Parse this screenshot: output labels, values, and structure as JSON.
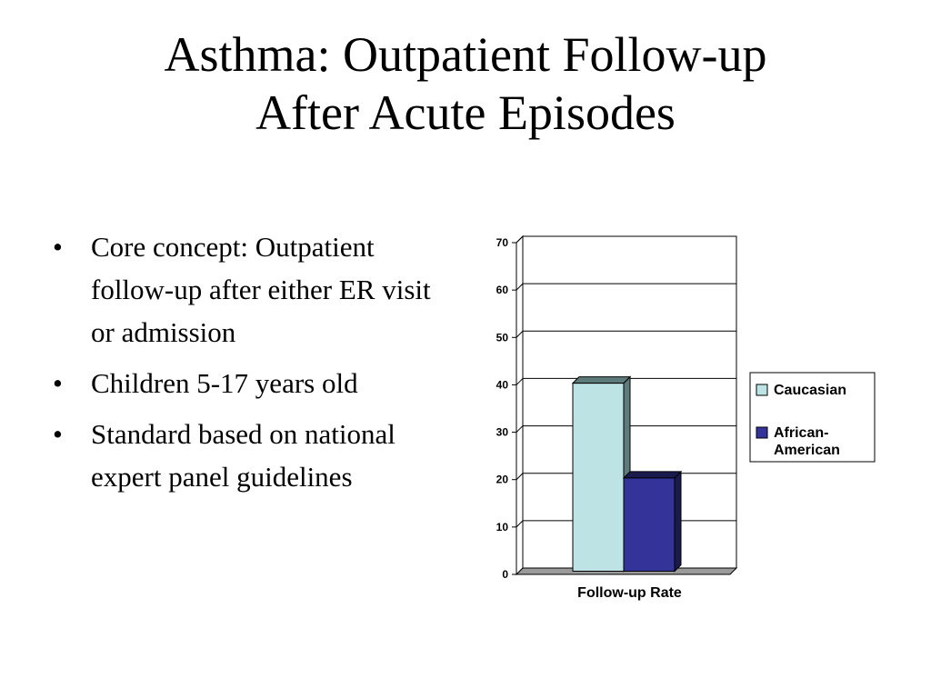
{
  "slide": {
    "title_line1": "Asthma: Outpatient Follow-up",
    "title_line2": "After Acute Episodes",
    "bullet_symbol": "•",
    "bullets": [
      "Core concept: Outpatient follow-up after either ER visit or admission",
      "Children 5-17 years old",
      "Standard based on national expert panel guidelines"
    ]
  },
  "chart_data": {
    "type": "bar",
    "style": "3d-clustered-column",
    "categories": [
      "Follow-up Rate"
    ],
    "series": [
      {
        "name": "Caucasian",
        "values": [
          39
        ],
        "color": "#bde3e4",
        "side_color": "#5e7b7c"
      },
      {
        "name": "African-American",
        "values": [
          19
        ],
        "color": "#333399",
        "side_color": "#1a1a4d"
      }
    ],
    "title": "",
    "xlabel": "",
    "ylabel": "",
    "ylim": [
      0,
      70
    ],
    "yticks": [
      0,
      10,
      20,
      30,
      40,
      50,
      60,
      70
    ],
    "grid": true,
    "legend": "right"
  }
}
